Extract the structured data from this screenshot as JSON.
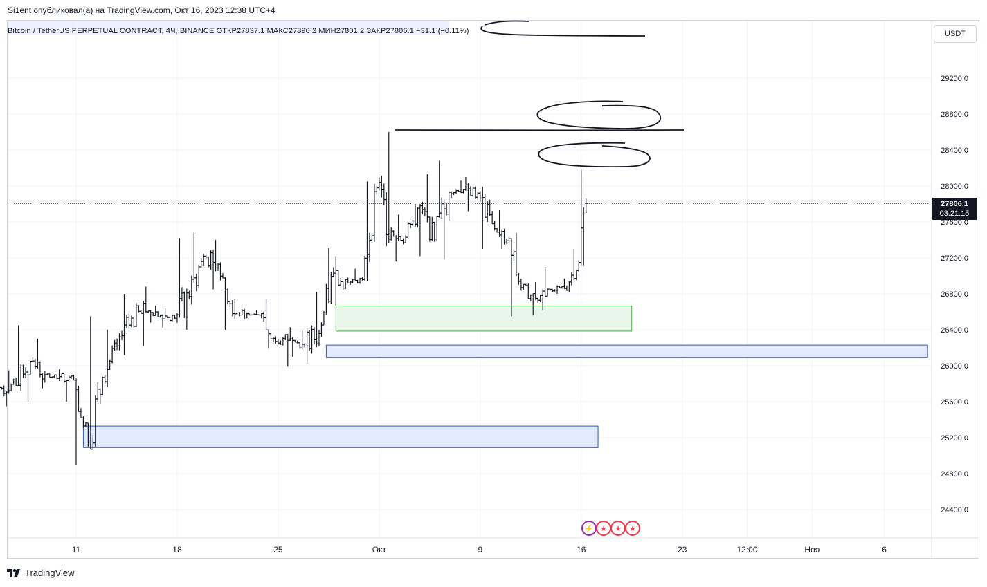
{
  "header": {
    "published": "Si1ent опубликовал(а) на TradingView.com, Окт 16, 2023 12:38 UTC+4"
  },
  "legend": {
    "symbol": "Bitcoin / TetherUS PERPETUAL CONTRACT, 4Ч, BINANCE",
    "open_label": "ОТКР",
    "open": "27837.1",
    "high_label": "МАКС",
    "high": "27890.2",
    "low_label": "МИН",
    "low": "27801.2",
    "close_label": "ЗАКР",
    "close": "27806.1",
    "change": "−31.1 (−0.11%)"
  },
  "currency_button": "USDT",
  "last_price": {
    "value": "27806.1",
    "countdown": "03:21:15"
  },
  "footer": {
    "brand": "TradingView"
  },
  "colors": {
    "candle": "#131722",
    "green_zone_fill": "#e8f5e9",
    "green_zone_border": "#4caf50",
    "blue_zone_fill": "#e3eafd",
    "blue_zone_border": "#2f58c4",
    "grid": "#f0f3fa",
    "price_tag": "#131722",
    "event_flag": "#f23645"
  },
  "event_icons": [
    "lightning-icon",
    "us-flag-icon",
    "us-flag-icon",
    "us-flag-icon"
  ],
  "chart_data": {
    "type": "ohlc",
    "y_ticks": [
      29200,
      28800,
      28400,
      28000,
      27600,
      27200,
      26800,
      26400,
      26000,
      25600,
      25200,
      24800,
      24400
    ],
    "y_tick_labels": [
      "29200.0",
      "28800.0",
      "28400.0",
      "28000.0",
      "27600.0",
      "27200.0",
      "26800.0",
      "26400.0",
      "26000.0",
      "25600.0",
      "25200.0",
      "24800.0",
      "24400.0"
    ],
    "ylim": [
      24100,
      29600
    ],
    "x_ticks": [
      {
        "label": "11",
        "date": "2023-09-11"
      },
      {
        "label": "18",
        "date": "2023-09-18"
      },
      {
        "label": "25",
        "date": "2023-09-25"
      },
      {
        "label": "Окт",
        "date": "2023-10-02"
      },
      {
        "label": "9",
        "date": "2023-10-09"
      },
      {
        "label": "16",
        "date": "2023-10-16"
      },
      {
        "label": "23",
        "date": "2023-10-23"
      },
      {
        "label": "12:00",
        "date": "2023-10-27 12:00"
      },
      {
        "label": "Ноя",
        "date": "2023-11-01"
      },
      {
        "label": "6",
        "date": "2023-11-06"
      }
    ],
    "interval": "4h",
    "last_price": 27806.1,
    "zones": [
      {
        "kind": "demand",
        "color": "green",
        "top": 26665,
        "bottom": 26385,
        "start": "2023-09-29",
        "end": "2023-10-19 12:00"
      },
      {
        "kind": "demand",
        "color": "blue",
        "top": 26230,
        "bottom": 26090,
        "start": "2023-09-28 08:00",
        "end": "2023-11-09"
      },
      {
        "kind": "demand",
        "color": "blue",
        "top": 25330,
        "bottom": 25090,
        "start": "2023-09-11 12:00",
        "end": "2023-10-17 04:00"
      }
    ],
    "daily_path": [
      {
        "date": "2023-09-05",
        "open": 25800,
        "high": 25850,
        "low": 25520,
        "close": 25750
      },
      {
        "date": "2023-09-06",
        "open": 25750,
        "high": 25950,
        "low": 25550,
        "close": 25780
      },
      {
        "date": "2023-09-07",
        "open": 25780,
        "high": 26450,
        "low": 25600,
        "close": 26050
      },
      {
        "date": "2023-09-08",
        "open": 26050,
        "high": 26300,
        "low": 25750,
        "close": 25900
      },
      {
        "date": "2023-09-09",
        "open": 25900,
        "high": 25960,
        "low": 25830,
        "close": 25880
      },
      {
        "date": "2023-09-10",
        "open": 25880,
        "high": 25900,
        "low": 25600,
        "close": 25840
      },
      {
        "date": "2023-09-11",
        "open": 25840,
        "high": 25860,
        "low": 24900,
        "close": 25150
      },
      {
        "date": "2023-09-12",
        "open": 25150,
        "high": 26550,
        "low": 25100,
        "close": 25870
      },
      {
        "date": "2023-09-13",
        "open": 25870,
        "high": 26400,
        "low": 25760,
        "close": 26220
      },
      {
        "date": "2023-09-14",
        "open": 26220,
        "high": 26800,
        "low": 26120,
        "close": 26530
      },
      {
        "date": "2023-09-15",
        "open": 26530,
        "high": 26880,
        "low": 26220,
        "close": 26600
      },
      {
        "date": "2023-09-16",
        "open": 26600,
        "high": 26670,
        "low": 26480,
        "close": 26560
      },
      {
        "date": "2023-09-17",
        "open": 26560,
        "high": 26640,
        "low": 26420,
        "close": 26530
      },
      {
        "date": "2023-09-18",
        "open": 26530,
        "high": 27420,
        "low": 26400,
        "close": 26770
      },
      {
        "date": "2023-09-19",
        "open": 26770,
        "high": 27480,
        "low": 26680,
        "close": 27220
      },
      {
        "date": "2023-09-20",
        "open": 27220,
        "high": 27400,
        "low": 26850,
        "close": 27130
      },
      {
        "date": "2023-09-21",
        "open": 27130,
        "high": 27150,
        "low": 26400,
        "close": 26580
      },
      {
        "date": "2023-09-22",
        "open": 26580,
        "high": 26740,
        "low": 26520,
        "close": 26580
      },
      {
        "date": "2023-09-23",
        "open": 26580,
        "high": 26620,
        "low": 26530,
        "close": 26580
      },
      {
        "date": "2023-09-24",
        "open": 26580,
        "high": 26740,
        "low": 26190,
        "close": 26270
      },
      {
        "date": "2023-09-25",
        "open": 26270,
        "high": 26430,
        "low": 25990,
        "close": 26300
      },
      {
        "date": "2023-09-26",
        "open": 26300,
        "high": 26390,
        "low": 26100,
        "close": 26220
      },
      {
        "date": "2023-09-27",
        "open": 26220,
        "high": 26820,
        "low": 26020,
        "close": 26360
      },
      {
        "date": "2023-09-28",
        "open": 26360,
        "high": 27310,
        "low": 26320,
        "close": 27030
      },
      {
        "date": "2023-09-29",
        "open": 27030,
        "high": 27220,
        "low": 26670,
        "close": 26920
      },
      {
        "date": "2023-09-30",
        "open": 26920,
        "high": 27080,
        "low": 26900,
        "close": 26960
      },
      {
        "date": "2023-10-01",
        "open": 26960,
        "high": 28050,
        "low": 26940,
        "close": 27980
      },
      {
        "date": "2023-10-02",
        "open": 27980,
        "high": 28600,
        "low": 27330,
        "close": 27500
      },
      {
        "date": "2023-10-03",
        "open": 27500,
        "high": 27680,
        "low": 27160,
        "close": 27430
      },
      {
        "date": "2023-10-04",
        "open": 27430,
        "high": 27800,
        "low": 27220,
        "close": 27780
      },
      {
        "date": "2023-10-05",
        "open": 27780,
        "high": 28130,
        "low": 27380,
        "close": 27410
      },
      {
        "date": "2023-10-06",
        "open": 27410,
        "high": 28280,
        "low": 27180,
        "close": 27930
      },
      {
        "date": "2023-10-07",
        "open": 27930,
        "high": 28060,
        "low": 27860,
        "close": 27960
      },
      {
        "date": "2023-10-08",
        "open": 27960,
        "high": 28100,
        "low": 27720,
        "close": 27920
      },
      {
        "date": "2023-10-09",
        "open": 27920,
        "high": 27990,
        "low": 27300,
        "close": 27580
      },
      {
        "date": "2023-10-10",
        "open": 27580,
        "high": 27730,
        "low": 27300,
        "close": 27390
      },
      {
        "date": "2023-10-11",
        "open": 27390,
        "high": 27480,
        "low": 26550,
        "close": 26870
      },
      {
        "date": "2023-10-12",
        "open": 26870,
        "high": 26930,
        "low": 26560,
        "close": 26750
      },
      {
        "date": "2023-10-13",
        "open": 26750,
        "high": 27100,
        "low": 26620,
        "close": 26850
      },
      {
        "date": "2023-10-14",
        "open": 26850,
        "high": 26970,
        "low": 26800,
        "close": 26860
      },
      {
        "date": "2023-10-15",
        "open": 26860,
        "high": 27300,
        "low": 26820,
        "close": 27150
      },
      {
        "date": "2023-10-16",
        "open": 27150,
        "high": 28180,
        "low": 27110,
        "close": 27806.1
      }
    ]
  }
}
